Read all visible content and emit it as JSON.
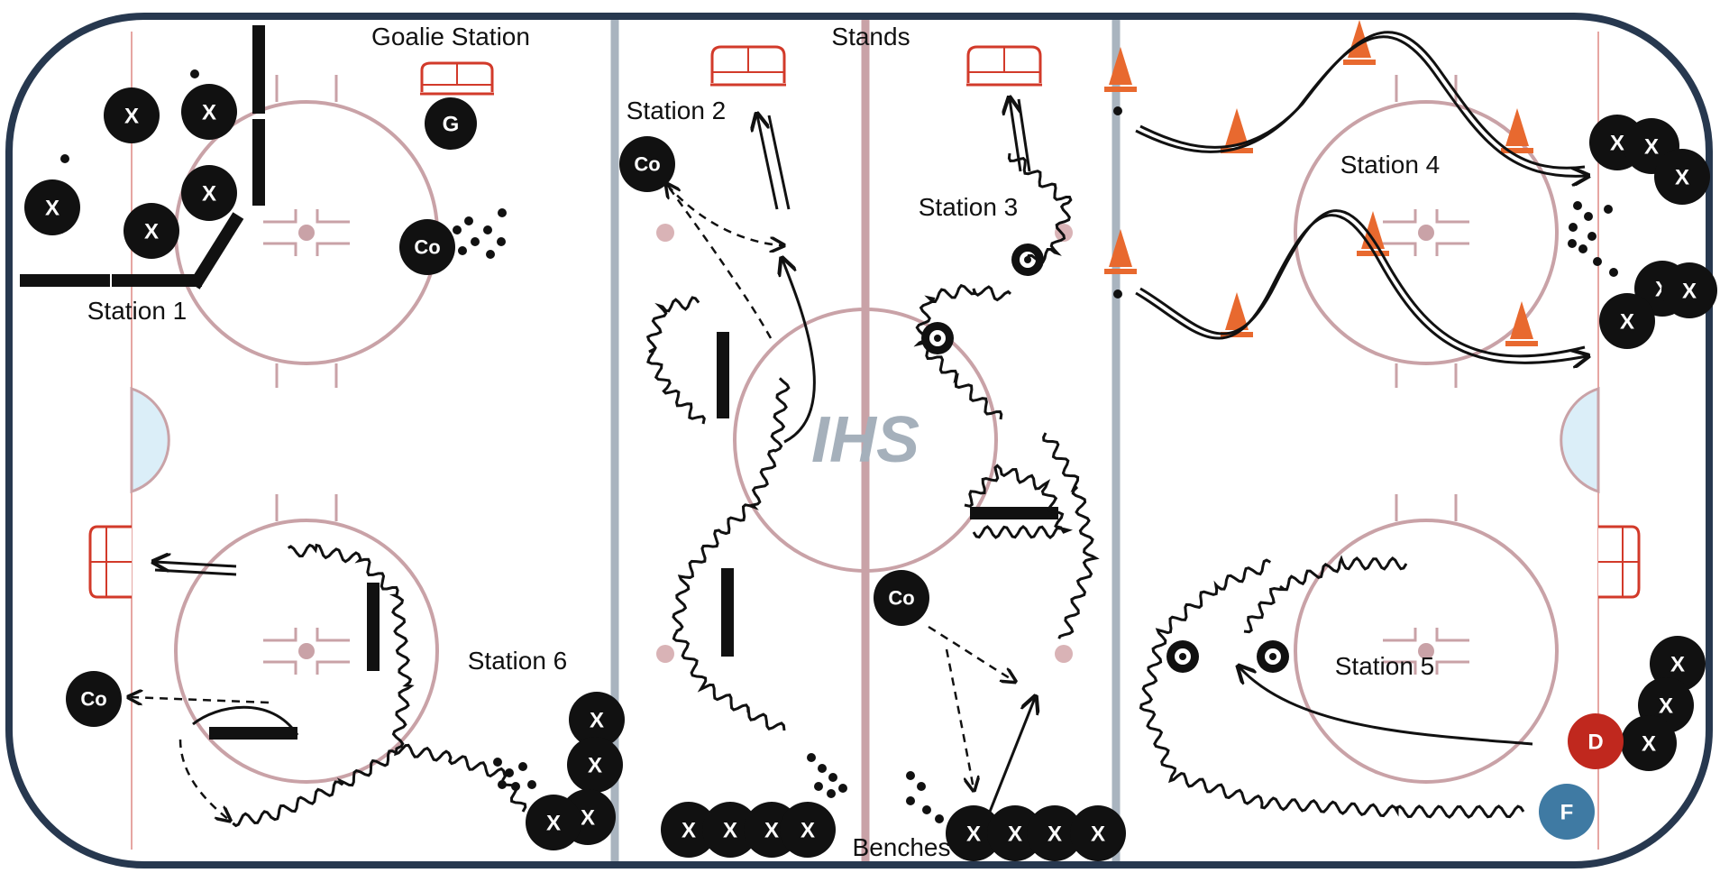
{
  "labels": {
    "goalie_station": "Goalie Station",
    "stands": "Stands",
    "benches": "Benches",
    "station1": "Station 1",
    "station2": "Station 2",
    "station3": "Station 3",
    "station4": "Station 4",
    "station5": "Station 5",
    "station6": "Station 6"
  },
  "players": {
    "skater": "X",
    "coach": "Co",
    "goalie": "G",
    "defense": "D",
    "forward": "F"
  },
  "logo_text": "IHS",
  "colors": {
    "board": "#27384f",
    "blue_line": "#a9b4bf",
    "red_line": "#c9a2a7",
    "crease": "#dbeef8",
    "net": "#d23a2a",
    "cone": "#e8692f",
    "defense": "#c0281e",
    "forward": "#3f7aa3",
    "player": "#111111"
  }
}
